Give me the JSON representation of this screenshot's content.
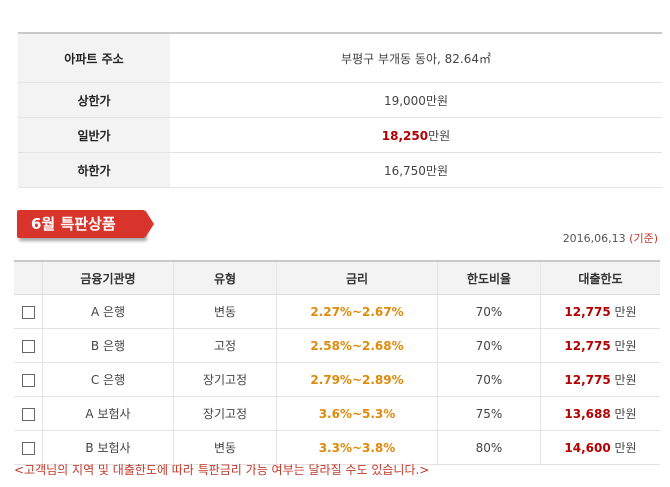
{
  "info": {
    "rows": [
      {
        "label": "아파트 주소",
        "value": "부평구 부개동 동아, 82.64㎡"
      },
      {
        "label": "상한가",
        "value": "19,000만원"
      },
      {
        "label": "일반가",
        "value_highlight": "18,250",
        "value_suffix": "만원"
      },
      {
        "label": "하한가",
        "value": "16,750만원"
      }
    ]
  },
  "banner": {
    "title": "6월 특판상품"
  },
  "date": {
    "text": "2016,06,13",
    "basis": "(기준)"
  },
  "table": {
    "headers": [
      "금융기관명",
      "유형",
      "금리",
      "한도비율",
      "대출한도"
    ],
    "rows": [
      {
        "institution": "A 은행",
        "type": "변동",
        "rate": "2.27%~2.67%",
        "ratio": "70%",
        "limit": "12,775",
        "unit": "만원"
      },
      {
        "institution": "B 은행",
        "type": "고정",
        "rate": "2.58%~2.68%",
        "ratio": "70%",
        "limit": "12,775",
        "unit": "만원"
      },
      {
        "institution": "C 은행",
        "type": "장기고정",
        "rate": "2.79%~2.89%",
        "ratio": "70%",
        "limit": "12,775",
        "unit": "만원"
      },
      {
        "institution": "A 보험사",
        "type": "장기고정",
        "rate": "3.6%~5.3%",
        "ratio": "75%",
        "limit": "13,688",
        "unit": "만원"
      },
      {
        "institution": "B 보험사",
        "type": "변동",
        "rate": "3.3%~3.8%",
        "ratio": "80%",
        "limit": "14,600",
        "unit": "만원"
      }
    ]
  },
  "note": "<고객님의 지역 및 대출한도에 따라 특판금리 가능 여부는 달라질 수도 있습니다.>"
}
